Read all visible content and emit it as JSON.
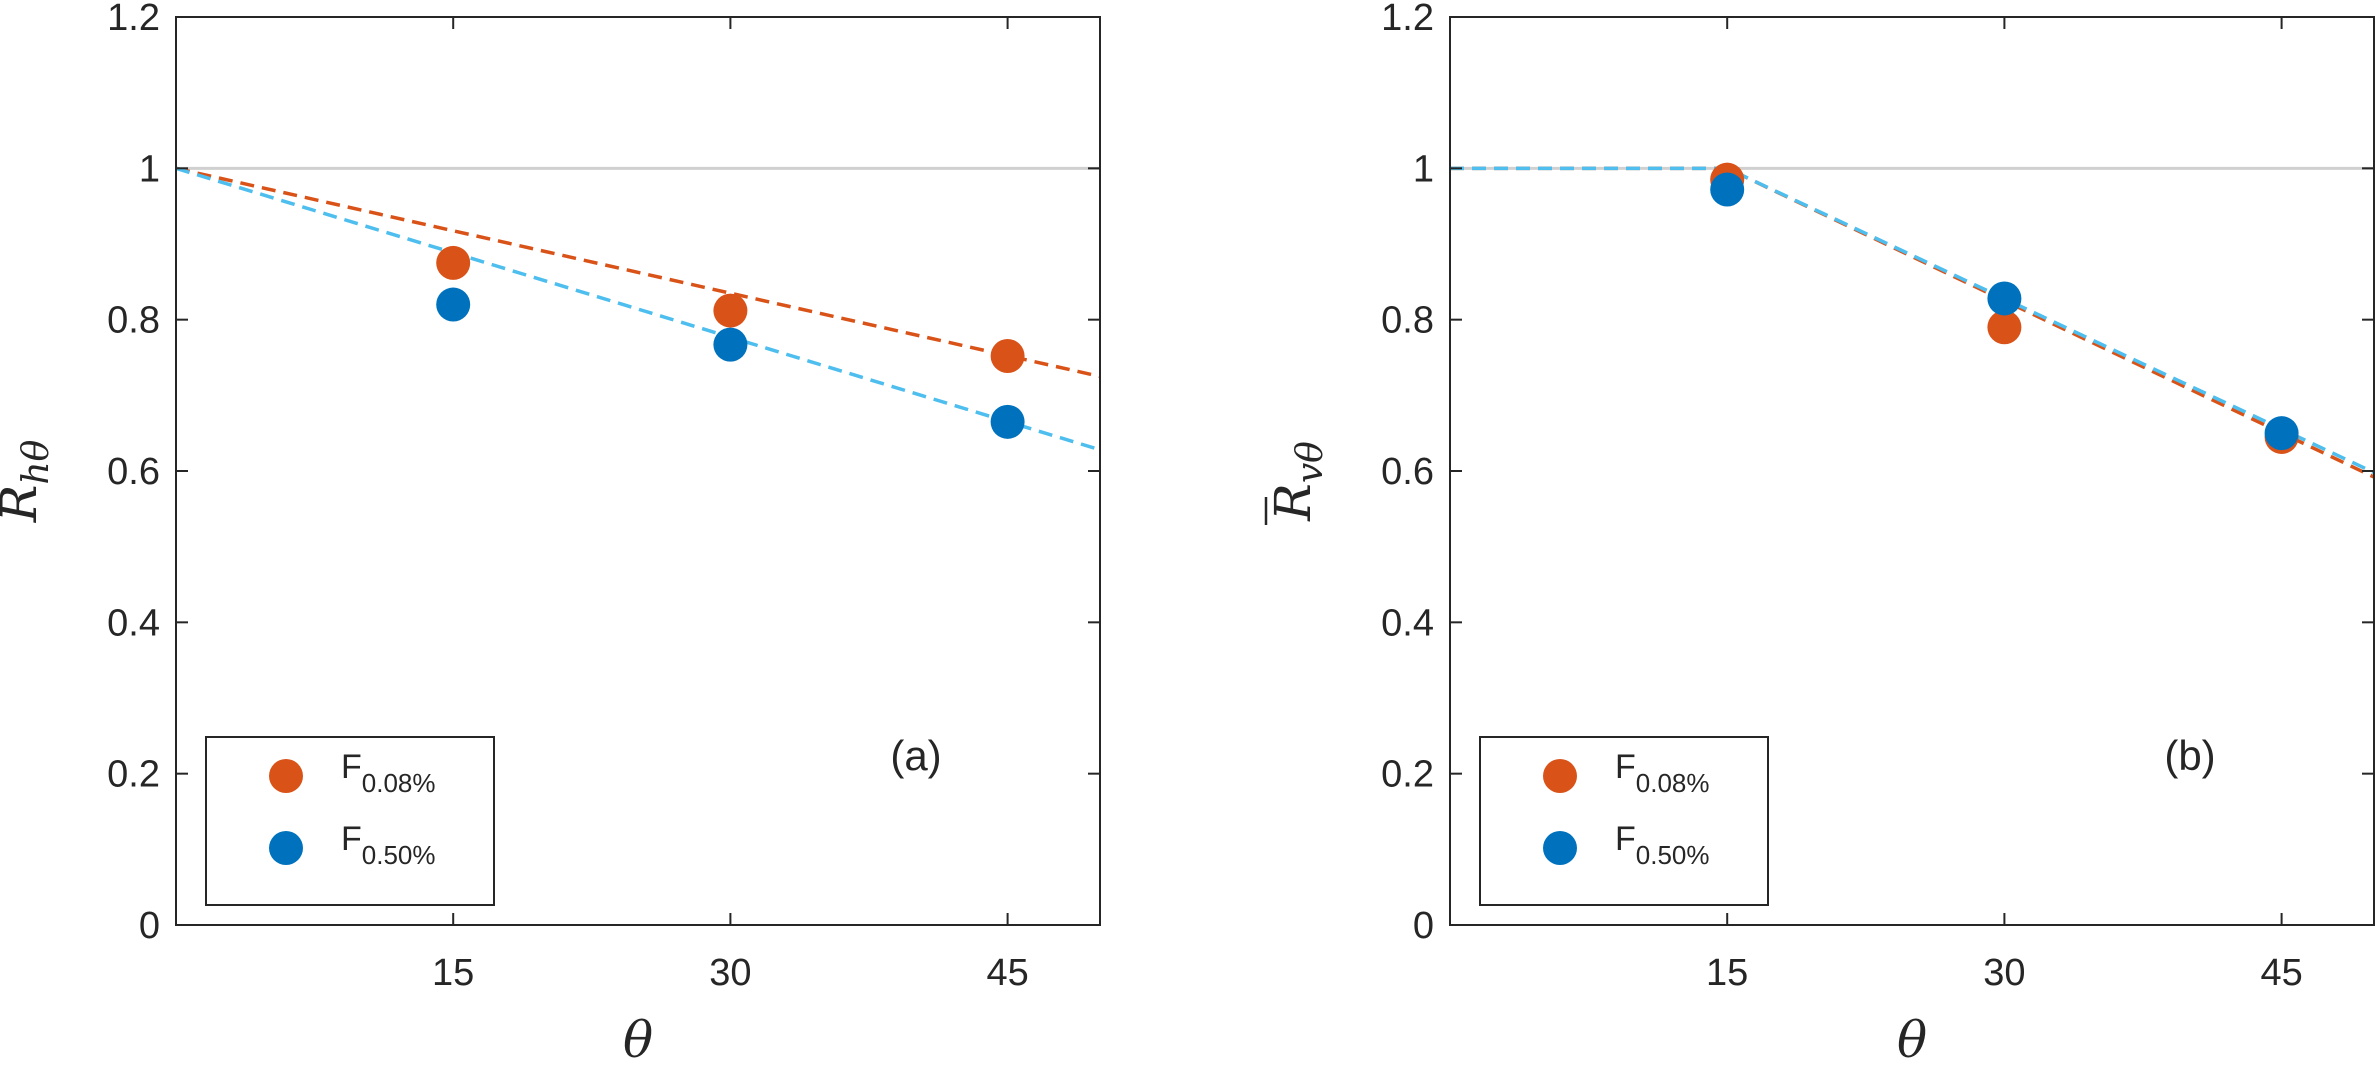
{
  "chart_data": [
    {
      "type": "scatter",
      "panel_label": "(a)",
      "xlabel": "θ",
      "ylabel": {
        "main": "R",
        "sub": "hθ",
        "overbar": true
      },
      "xlim": [
        0,
        50
      ],
      "ylim": [
        0,
        1.2
      ],
      "xticks": [
        "15",
        "30",
        "45"
      ],
      "xtick_values": [
        15,
        30,
        45
      ],
      "yticks": [
        "0",
        "0.2",
        "0.4",
        "0.6",
        "0.8",
        "1",
        "1.2"
      ],
      "ytick_values": [
        0,
        0.2,
        0.4,
        0.6,
        0.8,
        1.0,
        1.2
      ],
      "reference_line": {
        "y": 1.0,
        "color": "#d0d0d0"
      },
      "legend": {
        "position": "bottom-left"
      },
      "series": [
        {
          "name": "F",
          "name_sub": "0.08%",
          "color": "#d95319",
          "x": [
            15,
            30,
            45
          ],
          "values": [
            0.875,
            0.812,
            0.752
          ],
          "fit": {
            "x": [
              0,
              50
            ],
            "y": [
              1.0,
              0.725
            ],
            "color": "#d95319",
            "dash": true
          }
        },
        {
          "name": "F",
          "name_sub": "0.50%",
          "color": "#0072bd",
          "x": [
            15,
            30,
            45
          ],
          "values": [
            0.82,
            0.767,
            0.665
          ],
          "fit": {
            "x": [
              0,
              50
            ],
            "y": [
              1.0,
              0.628
            ],
            "color": "#4dbeee",
            "dash": true
          }
        }
      ]
    },
    {
      "type": "scatter",
      "panel_label": "(b)",
      "xlabel": "θ",
      "ylabel": {
        "main": "R",
        "sub": "vθ",
        "overbar": true
      },
      "xlim": [
        0,
        50
      ],
      "ylim": [
        0,
        1.2
      ],
      "xticks": [
        "15",
        "30",
        "45"
      ],
      "xtick_values": [
        15,
        30,
        45
      ],
      "yticks": [
        "0",
        "0.2",
        "0.4",
        "0.6",
        "0.8",
        "1",
        "1.2"
      ],
      "ytick_values": [
        0,
        0.2,
        0.4,
        0.6,
        0.8,
        1.0,
        1.2
      ],
      "reference_line": {
        "y": 1.0,
        "color": "#d0d0d0"
      },
      "legend": {
        "position": "bottom-left"
      },
      "series": [
        {
          "name": "F",
          "name_sub": "0.08%",
          "color": "#d95319",
          "x": [
            15,
            30,
            45
          ],
          "values": [
            0.985,
            0.79,
            0.645
          ],
          "fit": {
            "x": [
              0,
              15,
              50
            ],
            "y": [
              1.0,
              1.0,
              0.592
            ],
            "color": "#d95319",
            "dash": true
          }
        },
        {
          "name": "F",
          "name_sub": "0.50%",
          "color": "#0072bd",
          "x": [
            15,
            30,
            45
          ],
          "values": [
            0.972,
            0.828,
            0.65
          ],
          "fit": {
            "x": [
              0,
              15,
              50
            ],
            "y": [
              1.0,
              1.0,
              0.598
            ],
            "color": "#4dbeee",
            "dash": true
          }
        }
      ]
    }
  ]
}
